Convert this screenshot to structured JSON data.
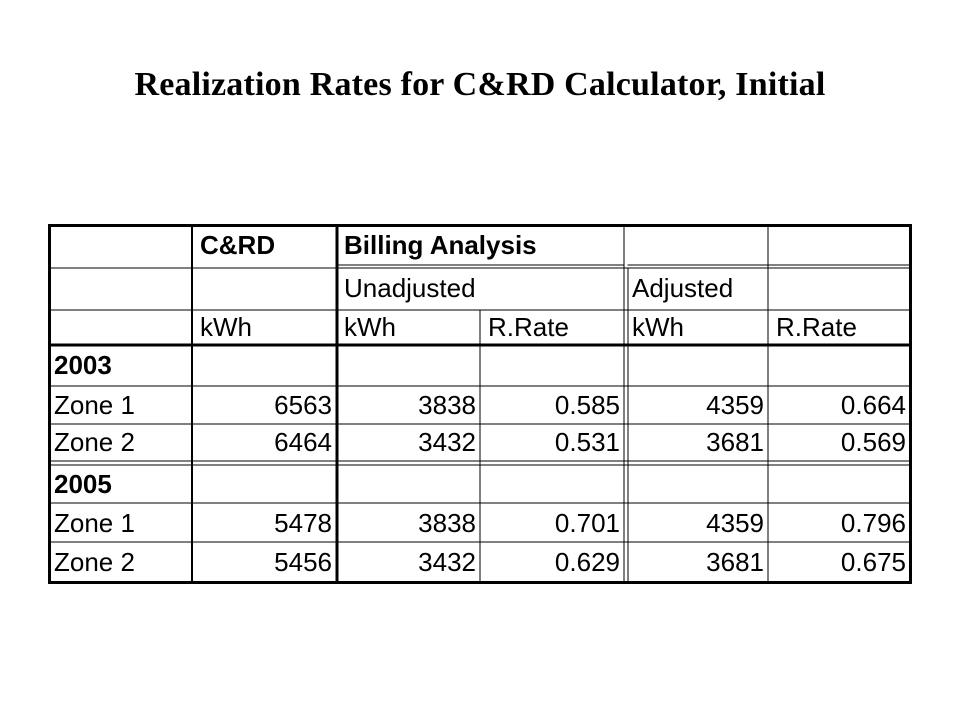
{
  "title": "Realization Rates for C&RD Calculator, Initial",
  "table": {
    "header": {
      "crd": "C&RD",
      "billing": "Billing Analysis",
      "unadjusted": "Unadjusted",
      "adjusted": "Adjusted",
      "units": [
        "kWh",
        "kWh",
        "R.Rate",
        "kWh",
        "R.Rate"
      ]
    },
    "groups": [
      {
        "year": "2003",
        "rows": [
          {
            "label": "Zone 1",
            "crd_kwh": "6563",
            "unadj_kwh": "3838",
            "unadj_rate": "0.585",
            "adj_kwh": "4359",
            "adj_rate": "0.664"
          },
          {
            "label": "Zone 2",
            "crd_kwh": "6464",
            "unadj_kwh": "3432",
            "unadj_rate": "0.531",
            "adj_kwh": "3681",
            "adj_rate": "0.569"
          }
        ]
      },
      {
        "year": "2005",
        "rows": [
          {
            "label": "Zone 1",
            "crd_kwh": "5478",
            "unadj_kwh": "3838",
            "unadj_rate": "0.701",
            "adj_kwh": "4359",
            "adj_rate": "0.796"
          },
          {
            "label": "Zone 2",
            "crd_kwh": "5456",
            "unadj_kwh": "3432",
            "unadj_rate": "0.629",
            "adj_kwh": "3681",
            "adj_rate": "0.675"
          }
        ]
      }
    ]
  }
}
